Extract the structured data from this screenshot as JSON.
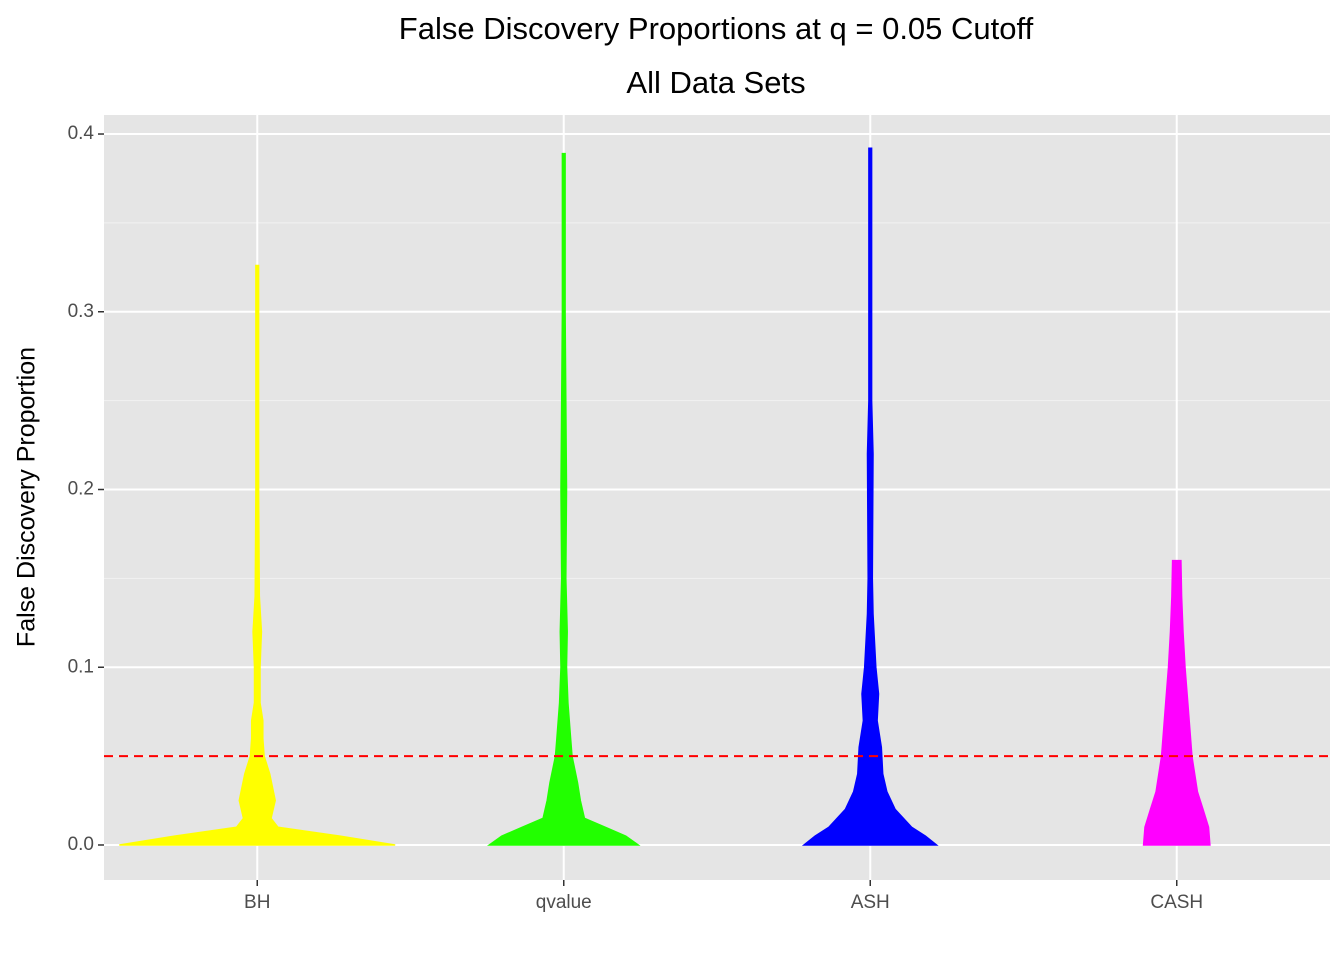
{
  "chart_data": {
    "type": "violin",
    "title": "False Discovery Proportions at q = 0.05 Cutoff",
    "subtitle": "All Data Sets",
    "y_label": "False Discovery Proportion",
    "ylim": [
      -0.0197,
      0.4107
    ],
    "yticks": [
      {
        "value": 0,
        "label": "0.0"
      },
      0.1,
      0.2,
      0.3,
      0.4
    ],
    "minor_yticks": [
      0.05,
      0.15,
      0.25,
      0.35
    ],
    "grid": true,
    "hline": {
      "value": 0.05,
      "color": "#ff0000"
    },
    "series": [
      {
        "name": "BH",
        "color": "#ffff00",
        "y": [
          0,
          0.005,
          0.01,
          0.015,
          0.025,
          0.04,
          0.05,
          0.06,
          0.07,
          0.08,
          0.1,
          0.12,
          0.14,
          0.2,
          0.3,
          0.326
        ],
        "widths": [
          1.0,
          0.6,
          0.15,
          0.1,
          0.13,
          0.09,
          0.05,
          0.04,
          0.04,
          0.02,
          0.02,
          0.03,
          0.015,
          0.01,
          0.01,
          0.01
        ]
      },
      {
        "name": "qvalue",
        "color": "#22ff00",
        "y": [
          0,
          0.005,
          0.01,
          0.015,
          0.025,
          0.035,
          0.05,
          0.06,
          0.08,
          0.1,
          0.12,
          0.15,
          0.2,
          0.25,
          0.3,
          0.389
        ],
        "widths": [
          0.54,
          0.45,
          0.3,
          0.15,
          0.12,
          0.1,
          0.06,
          0.05,
          0.03,
          0.02,
          0.025,
          0.015,
          0.02,
          0.015,
          0.01,
          0.01
        ]
      },
      {
        "name": "ASH",
        "color": "#0000ff",
        "y": [
          0,
          0.005,
          0.01,
          0.02,
          0.03,
          0.04,
          0.055,
          0.07,
          0.085,
          0.1,
          0.13,
          0.15,
          0.22,
          0.25,
          0.3,
          0.392
        ],
        "widths": [
          0.48,
          0.4,
          0.3,
          0.18,
          0.12,
          0.09,
          0.08,
          0.05,
          0.06,
          0.04,
          0.02,
          0.015,
          0.02,
          0.01,
          0.01,
          0.01
        ]
      },
      {
        "name": "CASH",
        "color": "#ff00ff",
        "y": [
          0,
          0.01,
          0.02,
          0.03,
          0.05,
          0.08,
          0.1,
          0.12,
          0.14,
          0.16
        ],
        "widths": [
          0.24,
          0.23,
          0.19,
          0.15,
          0.11,
          0.08,
          0.06,
          0.045,
          0.035,
          0.03
        ]
      }
    ]
  }
}
